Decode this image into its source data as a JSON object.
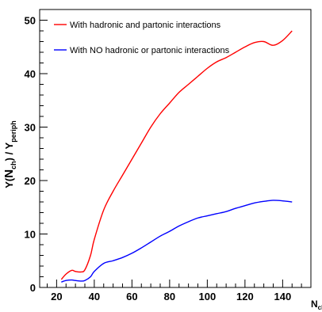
{
  "chart_data": {
    "type": "line",
    "xlabel": {
      "main": "N",
      "sub": "ch"
    },
    "ylabel": {
      "prefix": "Y(",
      "n": "N",
      "n_sub": "ch",
      "mid": ") / Y",
      "y_sub": "periph"
    },
    "xlim": [
      11,
      155
    ],
    "ylim": [
      0,
      52
    ],
    "x_ticks": [
      20,
      40,
      60,
      80,
      100,
      120,
      140
    ],
    "y_ticks": [
      0,
      10,
      20,
      30,
      40,
      50
    ],
    "x_minor_step": 5,
    "y_minor_step": 2,
    "grid": false,
    "legend_position": "top-left",
    "series": [
      {
        "name": "With hadronic and partonic interactions",
        "color": "#ff0000",
        "x": [
          22.5,
          25,
          28,
          30,
          33,
          35,
          38,
          40,
          45,
          50,
          55,
          60,
          65,
          70,
          75,
          80,
          85,
          90,
          95,
          100,
          105,
          110,
          115,
          120,
          125,
          130,
          135,
          140,
          145
        ],
        "y": [
          1.5,
          2.5,
          3.2,
          3.0,
          2.9,
          3.3,
          6.0,
          9.0,
          14.5,
          18.0,
          21.0,
          24.0,
          27.0,
          30.0,
          32.5,
          34.5,
          36.5,
          38.0,
          39.5,
          41.0,
          42.2,
          43.0,
          44.0,
          45.0,
          45.8,
          46.0,
          45.3,
          46.2,
          48.0
        ]
      },
      {
        "name": "With NO hadronic or partonic interactions",
        "color": "#0000ff",
        "x": [
          22.5,
          25,
          28,
          30,
          33,
          35,
          38,
          40,
          45,
          50,
          55,
          60,
          65,
          70,
          75,
          80,
          85,
          90,
          95,
          100,
          105,
          110,
          115,
          120,
          125,
          130,
          135,
          140,
          145
        ],
        "y": [
          1.0,
          1.3,
          1.4,
          1.3,
          1.2,
          1.3,
          2.0,
          3.0,
          4.5,
          5.0,
          5.6,
          6.4,
          7.4,
          8.5,
          9.6,
          10.5,
          11.5,
          12.3,
          13.0,
          13.4,
          13.8,
          14.2,
          14.8,
          15.3,
          15.8,
          16.1,
          16.3,
          16.2,
          16.0
        ]
      }
    ]
  }
}
